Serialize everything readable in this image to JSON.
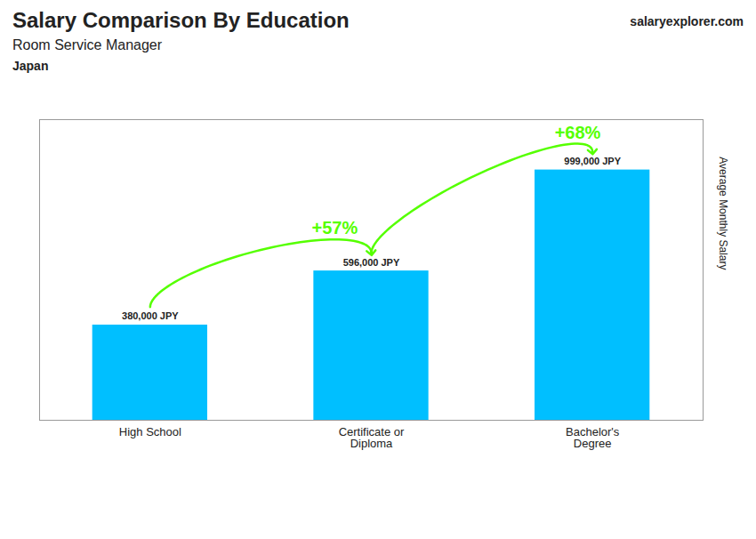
{
  "chart_data": {
    "type": "bar",
    "title": "Salary Comparison By Education",
    "subtitle": "Room Service Manager",
    "y_label": "Average Monthly Salary",
    "categories": [
      "High School",
      "Certificate or\nDiploma",
      "Bachelor's\nDegree"
    ],
    "values": [
      380000,
      596000,
      999000
    ],
    "value_labels": [
      "380,000 JPY",
      "596,000 JPY",
      "999,000 JPY"
    ],
    "data_labels": true,
    "color": "#00BFFF",
    "ylim": [
      0,
      1200000
    ],
    "tick_labels": "x",
    "annotations": [
      {
        "text": "+57%",
        "from": "High School",
        "to": "Certificate or\nDiploma",
        "color": "#55FF00"
      },
      {
        "text": "+68%",
        "from": "Certificate or\nDiploma",
        "to": "Bachelor's\nDegree",
        "color": "#55FF00"
      },
      {
        "text": "Japan"
      },
      {
        "text": "salaryexplorer.com"
      }
    ]
  }
}
